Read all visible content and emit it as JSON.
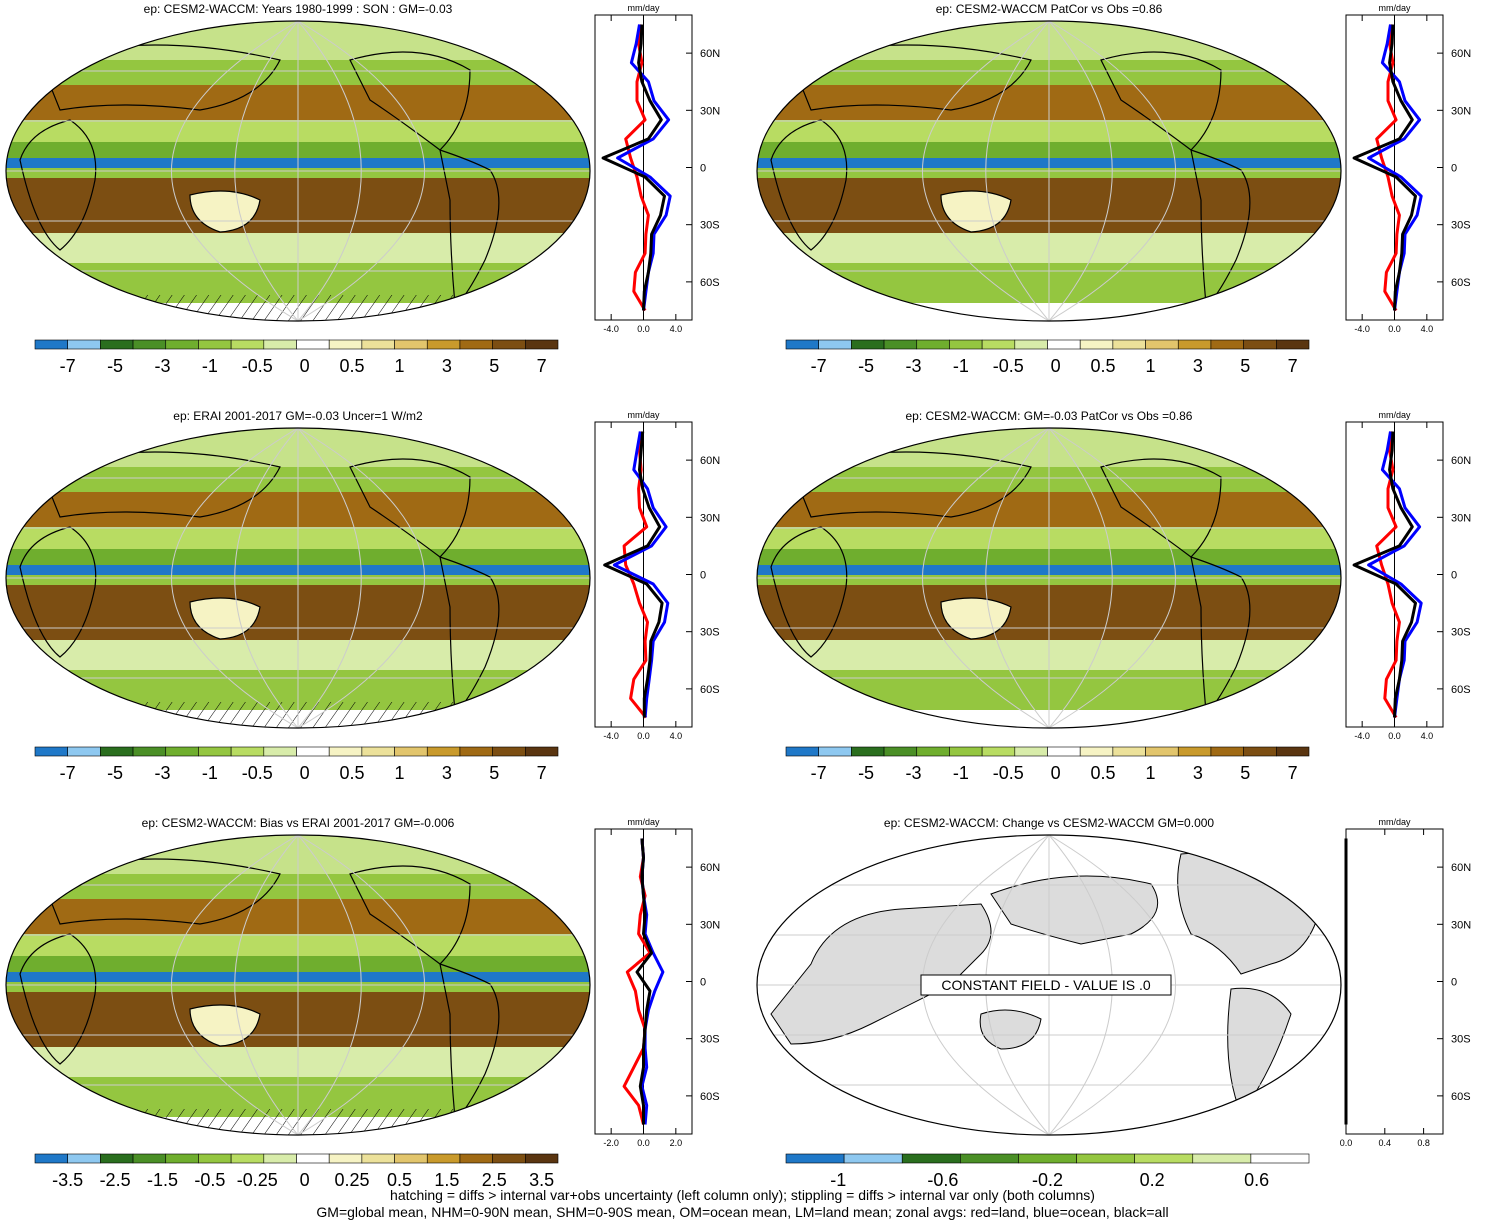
{
  "figure": {
    "footer_line1": "hatching = diffs > internal var+obs uncertainty (left column only); stippling = diffs > internal var only (both columns)",
    "footer_line2": "GM=global mean, NHM=0-90N mean, SHM=0-90S mean, OM=ocean mean, LM=land mean; zonal avgs: red=land, blue=ocean, black=all",
    "colors": {
      "land_line": "#ff0000",
      "ocean_line": "#0000ff",
      "all_line": "#000000",
      "colorbar_main": [
        "#1f78c8",
        "#8ec8f0",
        "#2a6e1e",
        "#4a8f26",
        "#6fae2e",
        "#94c640",
        "#b8dc62",
        "#d8ecaa",
        "#ffffff",
        "#f6f3c4",
        "#ece19a",
        "#e2c56c",
        "#c99a2c",
        "#a06a14",
        "#7c4e12",
        "#5a3510"
      ],
      "colorbar_bias": [
        "#1f78c8",
        "#8ec8f0",
        "#2a6e1e",
        "#4a8f26",
        "#6fae2e",
        "#94c640",
        "#b8dc62",
        "#d8ecaa",
        "#ffffff",
        "#f6f3c4",
        "#ece19a",
        "#e2c56c",
        "#c99a2c",
        "#a06a14",
        "#7c4e12",
        "#5a3510"
      ],
      "colorbar_change": [
        "#1f78c8",
        "#8ec8f0",
        "#2a6e1e",
        "#4a8f26",
        "#6fae2e",
        "#94c640",
        "#b8dc62",
        "#d8ecaa",
        "#ffffff"
      ]
    }
  },
  "chart_data": [
    {
      "type": "heatmap",
      "title": "ep: CESM2-WACCM: Years 1980-1999 : SON : GM=-0.03",
      "colorbar_labels": [
        "-7",
        "-5",
        "-3",
        "-1",
        "-0.5",
        "0",
        "0.5",
        "1",
        "3",
        "5",
        "7"
      ],
      "zonal_profile": {
        "xlabel": "mm/day",
        "xticks": [
          "-4.0",
          "0.0",
          "4.0"
        ],
        "xlim": [
          -6,
          6
        ],
        "ylim": [
          -80,
          80
        ],
        "yticks": [
          "60N",
          "30N",
          "0",
          "30S",
          "60S"
        ],
        "lat": [
          -75,
          -65,
          -55,
          -45,
          -35,
          -25,
          -15,
          -5,
          5,
          15,
          25,
          35,
          45,
          55,
          65,
          75
        ],
        "series": [
          {
            "name": "land",
            "values": [
              0.2,
              -1.2,
              -1.0,
              0.2,
              0.3,
              0.6,
              -0.3,
              -0.8,
              -1.6,
              -2.2,
              0.2,
              -0.8,
              -0.8,
              -0.2,
              -0.6,
              -0.3
            ]
          },
          {
            "name": "ocean",
            "values": [
              0.0,
              0.3,
              0.6,
              1.2,
              1.3,
              2.8,
              3.3,
              0.8,
              -3.2,
              1.2,
              3.1,
              1.3,
              0.6,
              -1.5,
              -0.9,
              -0.5
            ]
          },
          {
            "name": "all",
            "values": [
              0.0,
              0.1,
              0.6,
              0.9,
              1.0,
              2.1,
              2.6,
              0.2,
              -5.0,
              0.6,
              2.2,
              0.8,
              -0.2,
              -0.6,
              -0.3,
              -0.2
            ]
          }
        ]
      }
    },
    {
      "type": "heatmap",
      "title": "ep: CESM2-WACCM PatCor vs Obs =0.86",
      "colorbar_labels": [
        "-7",
        "-5",
        "-3",
        "-1",
        "-0.5",
        "0",
        "0.5",
        "1",
        "3",
        "5",
        "7"
      ],
      "zonal_profile": {
        "xlabel": "mm/day",
        "xticks": [
          "-4.0",
          "0.0",
          "4.0"
        ],
        "xlim": [
          -6,
          6
        ],
        "ylim": [
          -80,
          80
        ],
        "yticks": [
          "60N",
          "30N",
          "0",
          "30S",
          "60S"
        ],
        "lat": [
          -75,
          -65,
          -55,
          -45,
          -35,
          -25,
          -15,
          -5,
          5,
          15,
          25,
          35,
          45,
          55,
          65,
          75
        ],
        "series": [
          {
            "name": "land",
            "values": [
              0.2,
              -1.2,
              -1.0,
              0.2,
              0.3,
              0.6,
              -0.3,
              -0.8,
              -1.6,
              -2.2,
              0.2,
              -0.8,
              -0.8,
              -0.2,
              -0.6,
              -0.3
            ]
          },
          {
            "name": "ocean",
            "values": [
              0.0,
              0.3,
              0.6,
              1.2,
              1.3,
              2.8,
              3.3,
              0.8,
              -3.2,
              1.2,
              3.1,
              1.3,
              0.6,
              -1.5,
              -0.9,
              -0.5
            ]
          },
          {
            "name": "all",
            "values": [
              0.0,
              0.1,
              0.6,
              0.9,
              1.0,
              2.1,
              2.6,
              0.2,
              -5.0,
              0.6,
              2.2,
              0.8,
              -0.2,
              -0.6,
              -0.3,
              -0.2
            ]
          }
        ]
      }
    },
    {
      "type": "heatmap",
      "title": "ep: ERAI 2001-2017 GM=-0.03 Uncer=1 W/m2",
      "colorbar_labels": [
        "-7",
        "-5",
        "-3",
        "-1",
        "-0.5",
        "0",
        "0.5",
        "1",
        "3",
        "5",
        "7"
      ],
      "zonal_profile": {
        "xlabel": "mm/day",
        "xticks": [
          "-4.0",
          "0.0",
          "4.0"
        ],
        "xlim": [
          -6,
          6
        ],
        "ylim": [
          -80,
          80
        ],
        "yticks": [
          "60N",
          "30N",
          "0",
          "30S",
          "60S"
        ],
        "lat": [
          -75,
          -65,
          -55,
          -45,
          -35,
          -25,
          -15,
          -5,
          5,
          15,
          25,
          35,
          45,
          55,
          65,
          75
        ],
        "series": [
          {
            "name": "land",
            "values": [
              0.3,
              -1.6,
              -1.2,
              0.3,
              0.2,
              0.5,
              -0.5,
              -1.2,
              -2.2,
              -2.4,
              0.4,
              -0.5,
              -0.6,
              -0.3,
              -0.5,
              -0.2
            ]
          },
          {
            "name": "ocean",
            "values": [
              0.2,
              0.4,
              0.7,
              1.0,
              1.2,
              2.6,
              3.0,
              1.2,
              -3.6,
              1.0,
              2.8,
              1.2,
              0.5,
              -1.2,
              -0.8,
              -0.4
            ]
          },
          {
            "name": "all",
            "values": [
              0.1,
              0.1,
              0.5,
              0.8,
              0.9,
              1.9,
              2.3,
              0.4,
              -4.8,
              0.5,
              2.0,
              0.7,
              -0.1,
              -0.5,
              -0.3,
              -0.1
            ]
          }
        ]
      }
    },
    {
      "type": "heatmap",
      "title": "ep: CESM2-WACCM: GM=-0.03 PatCor vs Obs =0.86",
      "colorbar_labels": [
        "-7",
        "-5",
        "-3",
        "-1",
        "-0.5",
        "0",
        "0.5",
        "1",
        "3",
        "5",
        "7"
      ],
      "zonal_profile": {
        "xlabel": "mm/day",
        "xticks": [
          "-4.0",
          "0.0",
          "4.0"
        ],
        "xlim": [
          -6,
          6
        ],
        "ylim": [
          -80,
          80
        ],
        "yticks": [
          "60N",
          "30N",
          "0",
          "30S",
          "60S"
        ],
        "lat": [
          -75,
          -65,
          -55,
          -45,
          -35,
          -25,
          -15,
          -5,
          5,
          15,
          25,
          35,
          45,
          55,
          65,
          75
        ],
        "series": [
          {
            "name": "land",
            "values": [
              0.2,
              -1.2,
              -1.0,
              0.2,
              0.3,
              0.6,
              -0.3,
              -0.8,
              -1.6,
              -2.2,
              0.2,
              -0.8,
              -0.8,
              -0.2,
              -0.6,
              -0.3
            ]
          },
          {
            "name": "ocean",
            "values": [
              0.0,
              0.3,
              0.6,
              1.2,
              1.3,
              2.8,
              3.3,
              0.8,
              -3.2,
              1.2,
              3.1,
              1.3,
              0.6,
              -1.5,
              -0.9,
              -0.5
            ]
          },
          {
            "name": "all",
            "values": [
              0.0,
              0.1,
              0.6,
              0.9,
              1.0,
              2.1,
              2.6,
              0.2,
              -5.0,
              0.6,
              2.2,
              0.8,
              -0.2,
              -0.6,
              -0.3,
              -0.2
            ]
          }
        ]
      }
    },
    {
      "type": "heatmap",
      "title": "ep: CESM2-WACCM: Bias vs ERAI 2001-2017  GM=-0.006",
      "colorbar_labels": [
        "-3.5",
        "-2.5",
        "-1.5",
        "-0.5",
        "-0.25",
        "0",
        "0.25",
        "0.5",
        "1.5",
        "2.5",
        "3.5"
      ],
      "zonal_profile": {
        "xlabel": "mm/day",
        "xticks": [
          "-2.0",
          "0.0",
          "2.0"
        ],
        "xlim": [
          -3,
          3
        ],
        "ylim": [
          -80,
          80
        ],
        "yticks": [
          "60N",
          "30N",
          "0",
          "30S",
          "60S"
        ],
        "lat": [
          -75,
          -65,
          -55,
          -45,
          -35,
          -25,
          -15,
          -5,
          5,
          15,
          25,
          35,
          45,
          55,
          65,
          75
        ],
        "series": [
          {
            "name": "land",
            "values": [
              0.0,
              -0.3,
              -1.2,
              -0.6,
              0.0,
              0.1,
              -0.3,
              -0.5,
              -1.0,
              0.4,
              -0.3,
              -0.2,
              0.1,
              -0.2,
              0.0,
              -0.1
            ]
          },
          {
            "name": "ocean",
            "values": [
              0.1,
              0.2,
              -0.1,
              0.2,
              0.1,
              0.1,
              0.3,
              0.7,
              1.2,
              0.6,
              0.1,
              0.2,
              0.0,
              -0.1,
              0.0,
              -0.1
            ]
          },
          {
            "name": "all",
            "values": [
              0.0,
              0.0,
              -0.2,
              0.0,
              0.0,
              0.1,
              0.2,
              0.4,
              -0.4,
              0.5,
              0.0,
              0.1,
              0.0,
              -0.1,
              0.0,
              -0.1
            ]
          }
        ]
      }
    },
    {
      "type": "heatmap",
      "title": "ep: CESM2-WACCM: Change vs CESM2-WACCM GM=0.000",
      "annotation": "CONSTANT FIELD - VALUE IS .0",
      "colorbar_labels": [
        "-1",
        "-0.6",
        "-0.2",
        "0.2",
        "0.6"
      ],
      "zonal_profile": {
        "xlabel": "mm/day",
        "xticks": [
          "0.0",
          "0.4",
          "0.8"
        ],
        "xlim": [
          0,
          1
        ],
        "ylim": [
          -80,
          80
        ],
        "yticks": [
          "60N",
          "30N",
          "0",
          "30S",
          "60S"
        ],
        "lat": [
          -75,
          -65,
          -55,
          -45,
          -35,
          -25,
          -15,
          -5,
          5,
          15,
          25,
          35,
          45,
          55,
          65,
          75
        ],
        "series": [
          {
            "name": "land",
            "values": [
              0,
              0,
              0,
              0,
              0,
              0,
              0,
              0,
              0,
              0,
              0,
              0,
              0,
              0,
              0,
              0
            ]
          },
          {
            "name": "ocean",
            "values": [
              0,
              0,
              0,
              0,
              0,
              0,
              0,
              0,
              0,
              0,
              0,
              0,
              0,
              0,
              0,
              0
            ]
          },
          {
            "name": "all",
            "values": [
              0,
              0,
              0,
              0,
              0,
              0,
              0,
              0,
              0,
              0,
              0,
              0,
              0,
              0,
              0,
              0
            ]
          }
        ]
      }
    }
  ]
}
